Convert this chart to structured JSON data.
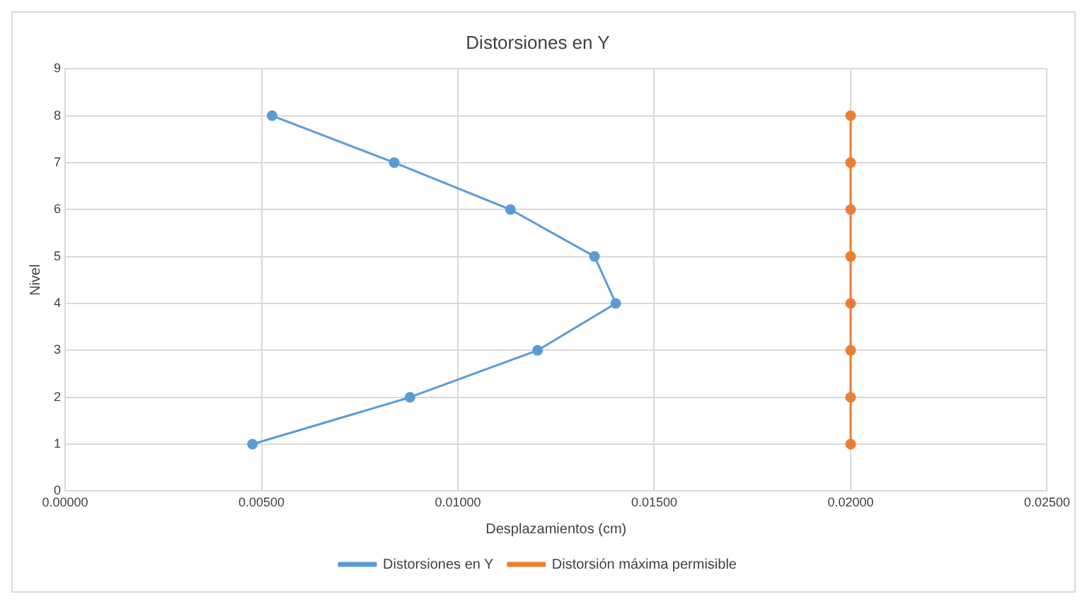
{
  "chart_data": {
    "type": "line",
    "title": "Distorsiones en Y",
    "xlabel": "Desplazamientos (cm)",
    "ylabel": "Nivel",
    "series": [
      {
        "name": "Distorsiones en Y",
        "color": "#5b9bd5",
        "x": [
          0.00477,
          0.00878,
          0.01203,
          0.01402,
          0.01348,
          0.01134,
          0.00838,
          0.00527
        ],
        "values": [
          1,
          2,
          3,
          4,
          5,
          6,
          7,
          8
        ]
      },
      {
        "name": "Distorsión máxima permisible",
        "color": "#ed7d31",
        "x": [
          0.02,
          0.02,
          0.02,
          0.02,
          0.02,
          0.02,
          0.02,
          0.02
        ],
        "values": [
          1,
          2,
          3,
          4,
          5,
          6,
          7,
          8
        ]
      }
    ],
    "xlim": [
      0,
      0.025
    ],
    "xticks": [
      {
        "value": 0,
        "label": "0.00000"
      },
      {
        "value": 0.005,
        "label": "0.00500"
      },
      {
        "value": 0.01,
        "label": "0.01000"
      },
      {
        "value": 0.015,
        "label": "0.01500"
      },
      {
        "value": 0.02,
        "label": "0.02000"
      },
      {
        "value": 0.025,
        "label": "0.02500"
      }
    ],
    "ylim": [
      0,
      9
    ],
    "yticks": [
      0,
      1,
      2,
      3,
      4,
      5,
      6,
      7,
      8,
      9
    ],
    "grid": true,
    "legend": "bottom",
    "marker": "circle",
    "line_style": "solid"
  }
}
